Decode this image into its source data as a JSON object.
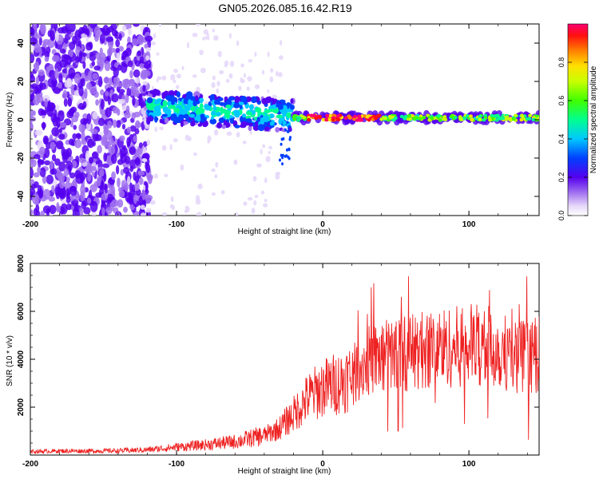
{
  "title": "GN05.2026.085.16.42.R19",
  "chart_data": [
    {
      "type": "heatmap",
      "name": "spectrogram",
      "xlabel": "Height of straight line (km)",
      "ylabel": "Frequency (Hz)",
      "xlim": [
        -200,
        148
      ],
      "ylim": [
        -50,
        50
      ],
      "x_ticks": [
        -200,
        -100,
        0,
        100
      ],
      "y_ticks": [
        -40,
        -20,
        0,
        20,
        40
      ],
      "colorbar": {
        "label": "Normalized spectral amplitude",
        "range": [
          0,
          1
        ],
        "ticks": [
          "0.0",
          "0.2",
          "0.4",
          "0.6",
          "0.8"
        ],
        "tick_values": [
          0.0,
          0.2,
          0.4,
          0.6,
          0.8
        ]
      },
      "regions": [
        {
          "x_from": -200,
          "x_to": -120,
          "description": "broadband noise, amplitude ~0.1-0.2"
        },
        {
          "x_from": -120,
          "x_to": -20,
          "center_hz_from": 7,
          "center_hz_to": 0,
          "amplitude": "0.2-0.45"
        },
        {
          "x_from": -20,
          "x_to": 148,
          "center_hz": 1,
          "amplitude": "0.4-1.0"
        }
      ]
    },
    {
      "type": "line",
      "name": "snr",
      "xlabel": "Height of straight line (km)",
      "ylabel": "SNR (10 * v/v)",
      "xlim": [
        -200,
        148
      ],
      "ylim": [
        0,
        8000
      ],
      "x_ticks": [
        -200,
        -100,
        0,
        100
      ],
      "y_ticks": [
        2000,
        4000,
        6000,
        8000
      ],
      "series": [
        {
          "name": "SNR",
          "color": "#ee2222",
          "x": [
            -200,
            -180,
            -160,
            -140,
            -120,
            -100,
            -80,
            -60,
            -40,
            -30,
            -20,
            -10,
            0,
            10,
            20,
            30,
            40,
            50,
            60,
            70,
            80,
            90,
            100,
            110,
            120,
            130,
            140,
            148
          ],
          "y": [
            150,
            170,
            170,
            180,
            220,
            330,
            430,
            560,
            820,
            1100,
            1700,
            2400,
            2800,
            3000,
            3300,
            3900,
            4100,
            4200,
            4300,
            4400,
            4500,
            4500,
            4600,
            4600,
            4400,
            4200,
            4100,
            4200
          ]
        }
      ]
    }
  ]
}
